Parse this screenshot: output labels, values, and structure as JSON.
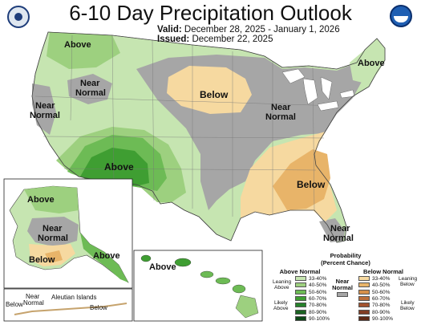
{
  "header": {
    "title": "6-10 Day Precipitation Outlook",
    "valid_label": "Valid:",
    "valid_value": "December 28, 2025 - January 1, 2026",
    "issued_label": "Issued:",
    "issued_value": "December 22, 2025"
  },
  "labels": {
    "northwest_above": "Above",
    "northeast_above": "Above",
    "idaho_near": "Near",
    "idaho_normal": "Normal",
    "plains_below": "Below",
    "midwest_near": "Near",
    "midwest_normal": "Normal",
    "west_near": "Near",
    "west_normal": "Normal",
    "southwest_above": "Above",
    "southeast_below": "Below",
    "florida_near": "Near",
    "florida_normal": "Normal",
    "alaska_above": "Above",
    "alaska_near": "Near",
    "alaska_normal": "Normal",
    "alaska_below": "Below",
    "alaska_panhandle_above": "Above",
    "aleutian_below_left": "Below",
    "aleutian_near": "Near",
    "aleutian_normal": "Normal",
    "aleutian_islands": "Aleutian Islands",
    "aleutian_below_right": "Below",
    "hawaii_above": "Above"
  },
  "legend": {
    "title_line1": "Probability",
    "title_line2": "(Percent Chance)",
    "above_head": "Above Normal",
    "below_head": "Below Normal",
    "near_head_line1": "Near",
    "near_head_line2": "Normal",
    "leaning_above_1": "Leaning",
    "leaning_above_2": "Above",
    "likely_above_1": "Likely",
    "likely_above_2": "Above",
    "leaning_below_1": "Leaning",
    "leaning_below_2": "Below",
    "likely_below_1": "Likely",
    "likely_below_2": "Below",
    "ranges": [
      "33-40%",
      "40-50%",
      "50-60%",
      "60-70%",
      "70-80%",
      "80-90%",
      "90-100%"
    ],
    "above_colors": [
      "#c6e5b1",
      "#9dd07f",
      "#6dbb55",
      "#3f9e32",
      "#27822b",
      "#1b6322",
      "#0c4716"
    ],
    "below_colors": [
      "#f6d9a0",
      "#e8b469",
      "#d6904a",
      "#bb6e3a",
      "#a3532e",
      "#823e25",
      "#5e2916"
    ],
    "near_color": "#a6a6a6"
  },
  "colors": {
    "above_33": "#c6e5b1",
    "above_40": "#9dd07f",
    "above_50": "#6dbb55",
    "above_60": "#3f9e32",
    "below_33": "#f6d9a0",
    "below_40": "#e8b469",
    "near": "#a6a6a6",
    "border": "#555555"
  }
}
